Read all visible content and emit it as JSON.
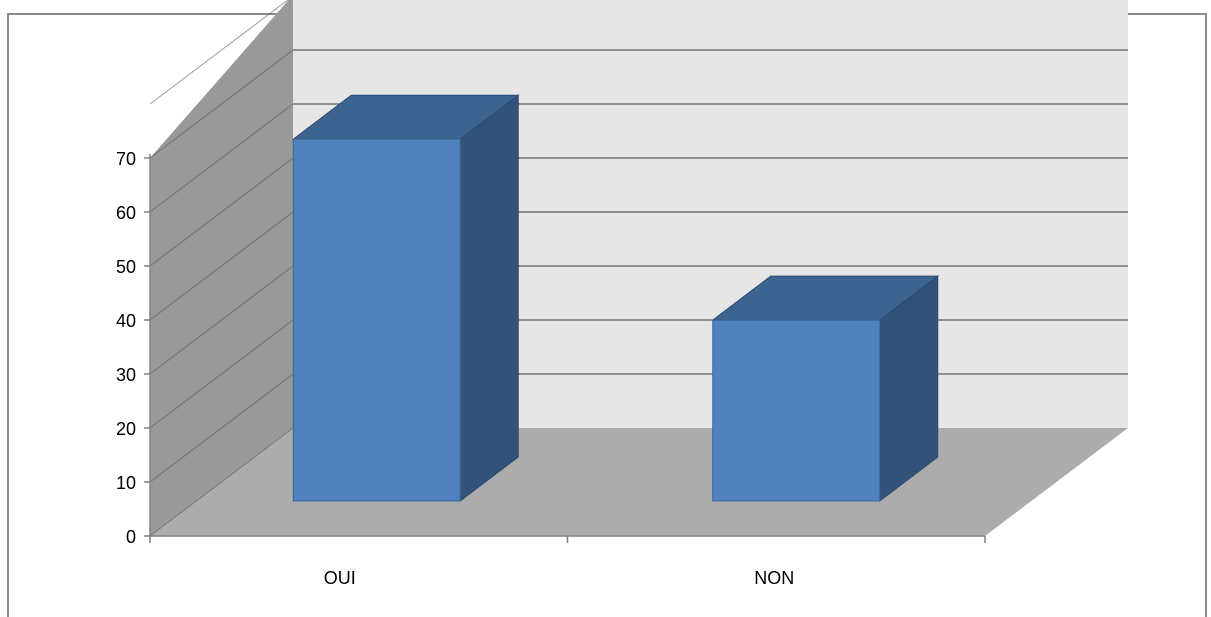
{
  "chart_data": {
    "type": "bar",
    "style": "3d-column",
    "categories": [
      "OUI",
      "NON"
    ],
    "values": [
      67,
      33.5
    ],
    "title": "",
    "xlabel": "",
    "ylabel": "",
    "ylim": [
      0,
      70
    ],
    "yticks": [
      "0",
      "10",
      "20",
      "30",
      "40",
      "50",
      "60",
      "70"
    ],
    "grid": true,
    "legend": "none",
    "colors": {
      "bar_front": "#4f81bd",
      "bar_side": "#325279",
      "bar_top": "#3d6491",
      "back_wall": "#e6e6e6",
      "side_wall": "#999999",
      "floor": "#acacac",
      "gridline": "#5a5a5a",
      "axis": "#808080"
    }
  }
}
